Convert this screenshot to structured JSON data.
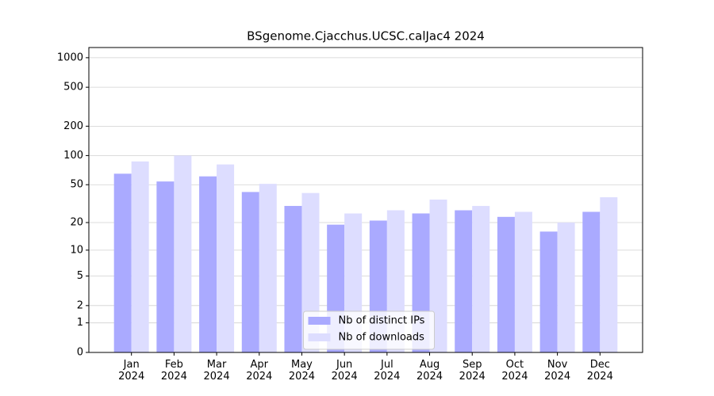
{
  "chart_data": {
    "type": "bar",
    "title": "BSgenome.Cjacchus.UCSC.calJac4 2024",
    "categories": [
      "Jan\n2024",
      "Feb\n2024",
      "Mar\n2024",
      "Apr\n2024",
      "May\n2024",
      "Jun\n2024",
      "Jul\n2024",
      "Aug\n2024",
      "Sep\n2024",
      "Oct\n2024",
      "Nov\n2024",
      "Dec\n2024"
    ],
    "series": [
      {
        "name": "Nb of distinct IPs",
        "color": "#aaaaff",
        "values": [
          65,
          54,
          61,
          42,
          30,
          19,
          21,
          25,
          27,
          23,
          16,
          26
        ]
      },
      {
        "name": "Nb of downloads",
        "color": "#ddddff",
        "values": [
          87,
          100,
          81,
          51,
          41,
          25,
          27,
          35,
          30,
          26,
          20,
          37
        ]
      }
    ],
    "yscale": "log1p",
    "ylim": [
      0,
      1270
    ],
    "yticks": [
      0,
      1,
      2,
      5,
      10,
      20,
      50,
      100,
      200,
      500,
      1000
    ],
    "grid": true,
    "legend": "lower center"
  }
}
